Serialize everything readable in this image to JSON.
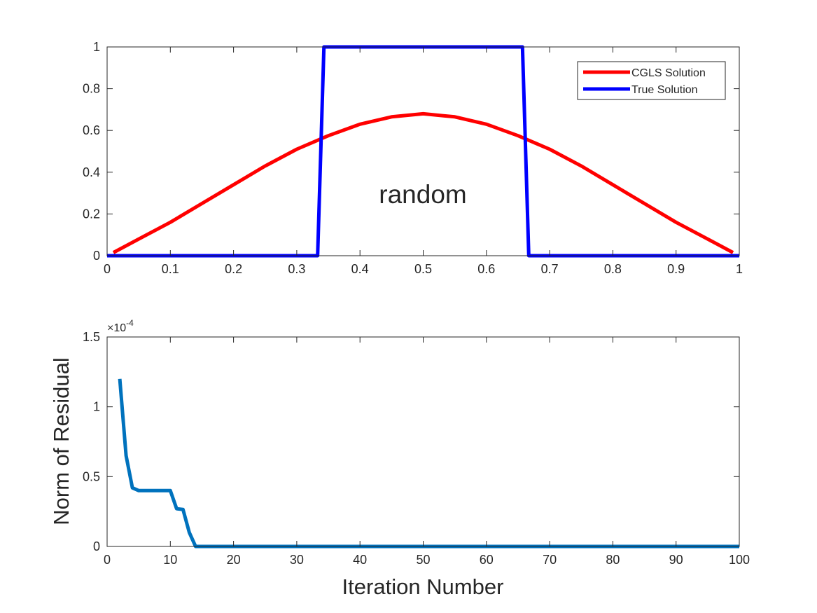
{
  "colors": {
    "cgls": "#ff0000",
    "true_solution": "#0000ff",
    "residual": "#0072bd",
    "axes": "#262626",
    "background": "#ffffff"
  },
  "chart_data": [
    {
      "type": "line",
      "title": "",
      "xlabel": "",
      "ylabel": "",
      "xlim": [
        0,
        1
      ],
      "ylim": [
        0,
        1
      ],
      "grid": false,
      "legend_placement": "top-right",
      "xticks": [
        "0",
        "0.1",
        "0.2",
        "0.3",
        "0.4",
        "0.5",
        "0.6",
        "0.7",
        "0.8",
        "0.9",
        "1"
      ],
      "yticks": [
        "0",
        "0.2",
        "0.4",
        "0.6",
        "0.8",
        "1"
      ],
      "annotation": "random",
      "series": [
        {
          "name": "CGLS Solution",
          "color": "#ff0000",
          "x": [
            0.01,
            0.05,
            0.1,
            0.15,
            0.2,
            0.25,
            0.3,
            0.35,
            0.4,
            0.45,
            0.5,
            0.55,
            0.6,
            0.65,
            0.7,
            0.75,
            0.8,
            0.85,
            0.9,
            0.95,
            0.99
          ],
          "y": [
            0.015,
            0.08,
            0.16,
            0.25,
            0.34,
            0.43,
            0.51,
            0.575,
            0.63,
            0.665,
            0.68,
            0.665,
            0.63,
            0.575,
            0.51,
            0.43,
            0.34,
            0.25,
            0.16,
            0.08,
            0.015
          ]
        },
        {
          "name": "True Solution",
          "color": "#0000ff",
          "x": [
            0,
            0.333,
            0.343,
            0.657,
            0.667,
            1
          ],
          "y": [
            0,
            0,
            1,
            1,
            0,
            0
          ]
        }
      ]
    },
    {
      "type": "line",
      "title": "",
      "xlabel": "Iteration Number",
      "ylabel": "Norm of Residual",
      "xlim": [
        0,
        100
      ],
      "ylim": [
        0,
        1.5
      ],
      "y_exponent": "×10",
      "y_exponent_power": "-4",
      "grid": false,
      "xticks": [
        "0",
        "10",
        "20",
        "30",
        "40",
        "50",
        "60",
        "70",
        "80",
        "90",
        "100"
      ],
      "yticks": [
        "0",
        "0.5",
        "1",
        "1.5"
      ],
      "series": [
        {
          "color": "#0072bd",
          "x": [
            2,
            3,
            4,
            5,
            6,
            7,
            8,
            9,
            10,
            11,
            12,
            13,
            14,
            100
          ],
          "y": [
            1.2,
            0.65,
            0.42,
            0.4,
            0.4,
            0.4,
            0.4,
            0.4,
            0.4,
            0.27,
            0.265,
            0.1,
            0.0,
            0.0
          ]
        }
      ]
    }
  ]
}
